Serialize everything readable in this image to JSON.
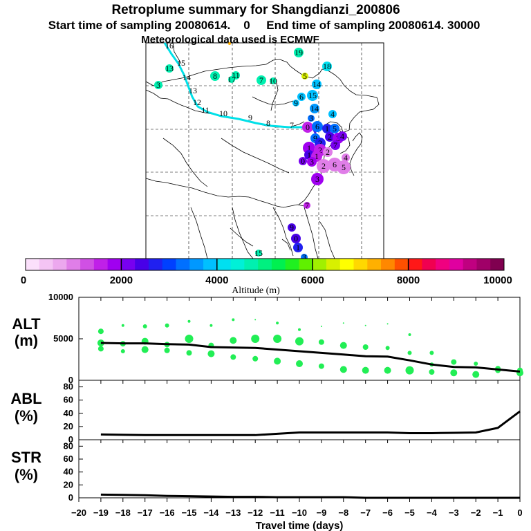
{
  "header": {
    "title": "Retroplume summary for Shangdianzi_200806",
    "subtitle": "Start time of sampling 20080614.    0     End time of sampling 20080614. 30000",
    "met_line": "Meteorological data used is ECMWF"
  },
  "colorbar": {
    "ticks": [
      "0",
      "2000",
      "4000",
      "6000",
      "8000",
      "10000"
    ],
    "label": "Altitude (m)",
    "colors": [
      "#fbe0fb",
      "#f4c4f4",
      "#eca8ee",
      "#e07ee8",
      "#d050e4",
      "#c020e8",
      "#a000f0",
      "#7800f0",
      "#4800e8",
      "#2020f0",
      "#0040ff",
      "#0070ff",
      "#0098ff",
      "#00c0ff",
      "#00e0f0",
      "#00f0d8",
      "#00f0b0",
      "#00f080",
      "#00f050",
      "#20f020",
      "#60f000",
      "#a0f000",
      "#d8f000",
      "#ffff00",
      "#ffd800",
      "#ffb000",
      "#ff8800",
      "#ff5000",
      "#ff1818",
      "#f00050",
      "#f00080",
      "#e000a0",
      "#c00080",
      "#a00068",
      "#800050"
    ]
  },
  "map": {
    "lat_labels_visible": false,
    "plume_labels": [
      {
        "t": "16",
        "x": 245,
        "y": 70,
        "c": "#000000",
        "s": 13
      },
      {
        "t": "15",
        "x": 262,
        "y": 95,
        "c": "#000000",
        "s": 15
      },
      {
        "t": "14",
        "x": 270,
        "y": 116,
        "c": "#000000",
        "s": 15
      },
      {
        "t": "13",
        "x": 279,
        "y": 135,
        "c": "#000000",
        "s": 15
      },
      {
        "t": "12",
        "x": 285,
        "y": 152,
        "c": "#000000",
        "s": 15
      },
      {
        "t": "11",
        "x": 297,
        "y": 163,
        "c": "#000000",
        "s": 14
      },
      {
        "t": "10",
        "x": 323,
        "y": 168,
        "c": "#000000",
        "s": 15
      },
      {
        "t": "9",
        "x": 362,
        "y": 174,
        "c": "#000000",
        "s": 15
      },
      {
        "t": "8",
        "x": 388,
        "y": 182,
        "c": "#000000",
        "s": 15
      },
      {
        "t": "7",
        "x": 422,
        "y": 185,
        "c": "#000000",
        "s": 15
      }
    ],
    "dots": [
      {
        "t": "13",
        "x": 245,
        "y": 99,
        "r": 6,
        "c": "#00f0b0"
      },
      {
        "t": "3",
        "x": 229,
        "y": 123,
        "r": 6,
        "c": "#00f0b0"
      },
      {
        "t": "8",
        "x": 311,
        "y": 110,
        "r": 7,
        "c": "#00f0b0"
      },
      {
        "t": "11",
        "x": 341,
        "y": 109,
        "r": 6,
        "c": "#00f0b0"
      },
      {
        "t": "17",
        "x": 335,
        "y": 115,
        "r": 5,
        "c": "#00f0b0"
      },
      {
        "t": "7",
        "x": 378,
        "y": 116,
        "r": 7,
        "c": "#00f0b0"
      },
      {
        "t": "10",
        "x": 395,
        "y": 117,
        "r": 5,
        "c": "#00f0b0"
      },
      {
        "t": "19",
        "x": 432,
        "y": 76,
        "r": 7,
        "c": "#00f0b0"
      },
      {
        "t": "18",
        "x": 473,
        "y": 96,
        "r": 7,
        "c": "#00e0f0"
      },
      {
        "t": "5",
        "x": 441,
        "y": 110,
        "r": 5,
        "c": "#d8f000"
      },
      {
        "t": "14",
        "x": 458,
        "y": 122,
        "r": 7,
        "c": "#00c0ff"
      },
      {
        "t": "6",
        "x": 436,
        "y": 140,
        "r": 6,
        "c": "#00c0ff"
      },
      {
        "t": "15",
        "x": 452,
        "y": 138,
        "r": 8,
        "c": "#00c0ff"
      },
      {
        "t": "9",
        "x": 428,
        "y": 149,
        "r": 5,
        "c": "#00c0ff"
      },
      {
        "t": "14",
        "x": 455,
        "y": 157,
        "r": 7,
        "c": "#0098ff"
      },
      {
        "t": "4",
        "x": 481,
        "y": 165,
        "r": 6,
        "c": "#00c0ff"
      },
      {
        "t": "3",
        "x": 450,
        "y": 171,
        "r": 5,
        "c": "#0070ff"
      },
      {
        "t": "0",
        "x": 445,
        "y": 184,
        "r": 8,
        "c": "#c020e8"
      },
      {
        "t": "6",
        "x": 459,
        "y": 183,
        "r": 8,
        "c": "#0070ff"
      },
      {
        "t": "1",
        "x": 473,
        "y": 186,
        "r": 7,
        "c": "#2020f0"
      },
      {
        "t": "5",
        "x": 484,
        "y": 186,
        "r": 7,
        "c": "#0070ff"
      },
      {
        "t": "9",
        "x": 456,
        "y": 200,
        "r": 7,
        "c": "#0070ff"
      },
      {
        "t": "2",
        "x": 477,
        "y": 198,
        "r": 7,
        "c": "#4800e8"
      },
      {
        "t": "3",
        "x": 489,
        "y": 200,
        "r": 8,
        "c": "#a000f0"
      },
      {
        "t": "4",
        "x": 495,
        "y": 197,
        "r": 7,
        "c": "#7800f0"
      },
      {
        "t": "2",
        "x": 463,
        "y": 207,
        "r": 8,
        "c": "#2020f0"
      },
      {
        "t": "7",
        "x": 485,
        "y": 210,
        "r": 7,
        "c": "#7800f0"
      },
      {
        "t": "1",
        "x": 447,
        "y": 214,
        "r": 9,
        "c": "#a000f0"
      },
      {
        "t": "2",
        "x": 463,
        "y": 217,
        "r": 9,
        "c": "#c020e8"
      },
      {
        "t": "2",
        "x": 474,
        "y": 220,
        "r": 7,
        "c": "#e07ee8"
      },
      {
        "t": "1",
        "x": 447,
        "y": 224,
        "r": 7,
        "c": "#4800e8"
      },
      {
        "t": "1",
        "x": 458,
        "y": 226,
        "r": 8,
        "c": "#c020e8"
      },
      {
        "t": "4",
        "x": 500,
        "y": 228,
        "r": 6,
        "c": "#e07ee8"
      },
      {
        "t": "0",
        "x": 438,
        "y": 233,
        "r": 6,
        "c": "#7800f0"
      },
      {
        "t": "3",
        "x": 451,
        "y": 234,
        "r": 7,
        "c": "#a000f0"
      },
      {
        "t": "2",
        "x": 468,
        "y": 240,
        "r": 10,
        "c": "#e07ee8"
      },
      {
        "t": "6",
        "x": 484,
        "y": 238,
        "r": 10,
        "c": "#e07ee8"
      },
      {
        "t": "5",
        "x": 497,
        "y": 242,
        "r": 10,
        "c": "#e07ee8"
      },
      {
        "t": "3",
        "x": 459,
        "y": 259,
        "r": 9,
        "c": "#a000f0"
      },
      {
        "t": "7",
        "x": 444,
        "y": 297,
        "r": 5,
        "c": "#c020e8"
      },
      {
        "t": "9",
        "x": 422,
        "y": 329,
        "r": 6,
        "c": "#4800e8"
      },
      {
        "t": "0",
        "x": 428,
        "y": 345,
        "r": 7,
        "c": "#4800e8"
      },
      {
        "t": "1",
        "x": 431,
        "y": 358,
        "r": 7,
        "c": "#2020f0"
      },
      {
        "t": "15",
        "x": 374,
        "y": 366,
        "r": 5,
        "c": "#00f0b0"
      },
      {
        "t": "3",
        "x": 440,
        "y": 372,
        "r": 5,
        "c": "#0070ff"
      }
    ]
  },
  "panels": {
    "alt": {
      "label_top": "ALT",
      "label_bottom": "(m)",
      "yticks": [
        "10000",
        "5000",
        "0"
      ]
    },
    "abl": {
      "label_top": "ABL",
      "label_bottom": "(%)",
      "yticks": [
        "80",
        "60",
        "40",
        "20",
        "0"
      ]
    },
    "str": {
      "label_top": "STR",
      "label_bottom": "(%)",
      "yticks": [
        "80",
        "60",
        "40",
        "20",
        "0"
      ]
    },
    "xlabel": "Travel time (days)",
    "xticks": [
      "−20",
      "−19",
      "−18",
      "−17",
      "−16",
      "−15",
      "−14",
      "−13",
      "−12",
      "−11",
      "−10",
      "−9",
      "−8",
      "−7",
      "−6",
      "−5",
      "−4",
      "−3",
      "−2",
      "−1",
      "0"
    ]
  },
  "chart_data": [
    {
      "type": "line",
      "title": "ALT",
      "xlabel": "Travel time (days)",
      "ylabel": "ALT (m)",
      "xlim": [
        -20,
        0
      ],
      "ylim": [
        0,
        10000
      ],
      "series": [
        {
          "name": "mean altitude",
          "x": [
            -19,
            -18,
            -17,
            -16,
            -15,
            -14,
            -13,
            -12,
            -11,
            -10,
            -9,
            -8,
            -7,
            -6,
            -5,
            -4,
            -3,
            -2,
            -1,
            0
          ],
          "values": [
            4500,
            4450,
            4450,
            4350,
            4300,
            4000,
            3950,
            3900,
            3700,
            3500,
            3300,
            3100,
            2900,
            2850,
            2400,
            1900,
            1600,
            1550,
            1300,
            1050
          ]
        },
        {
          "name": "plume spread",
          "points": [
            [
              -19,
              5900,
              4
            ],
            [
              -19,
              4500,
              5
            ],
            [
              -19,
              3800,
              4
            ],
            [
              -18,
              6600,
              2
            ],
            [
              -18,
              4400,
              4
            ],
            [
              -18,
              3500,
              3
            ],
            [
              -17,
              6500,
              3
            ],
            [
              -17,
              4700,
              5
            ],
            [
              -17,
              3700,
              5
            ],
            [
              -16,
              6600,
              3
            ],
            [
              -16,
              4300,
              4
            ],
            [
              -16,
              3600,
              4
            ],
            [
              -15,
              7100,
              2
            ],
            [
              -15,
              5000,
              6
            ],
            [
              -15,
              3300,
              4
            ],
            [
              -14,
              6600,
              2
            ],
            [
              -14,
              4200,
              4
            ],
            [
              -14,
              3200,
              5
            ],
            [
              -13,
              7300,
              2
            ],
            [
              -13,
              4800,
              5
            ],
            [
              -13,
              2800,
              4
            ],
            [
              -12,
              7300,
              1
            ],
            [
              -12,
              5000,
              6
            ],
            [
              -12,
              2600,
              4
            ],
            [
              -11,
              6900,
              2
            ],
            [
              -11,
              5000,
              6
            ],
            [
              -11,
              2300,
              5
            ],
            [
              -10,
              6100,
              2
            ],
            [
              -10,
              4700,
              6
            ],
            [
              -10,
              2000,
              5
            ],
            [
              -9,
              6500,
              1
            ],
            [
              -9,
              4600,
              4
            ],
            [
              -9,
              1700,
              4
            ],
            [
              -8,
              6900,
              1
            ],
            [
              -8,
              4200,
              5
            ],
            [
              -8,
              1300,
              5
            ],
            [
              -7,
              6600,
              1
            ],
            [
              -7,
              4000,
              4
            ],
            [
              -7,
              1200,
              5
            ],
            [
              -6,
              6800,
              1
            ],
            [
              -6,
              3900,
              3
            ],
            [
              -6,
              1200,
              5
            ],
            [
              -5,
              5500,
              2
            ],
            [
              -5,
              3300,
              3
            ],
            [
              -5,
              1200,
              6
            ],
            [
              -4,
              3300,
              3
            ],
            [
              -4,
              1900,
              3
            ],
            [
              -4,
              1000,
              4
            ],
            [
              -3,
              2200,
              4
            ],
            [
              -3,
              900,
              5
            ],
            [
              -2,
              2000,
              3
            ],
            [
              -2,
              700,
              5
            ],
            [
              -1,
              1400,
              4
            ],
            [
              -1,
              1200,
              4
            ],
            [
              0,
              1200,
              4
            ],
            [
              0,
              900,
              5
            ]
          ]
        }
      ]
    },
    {
      "type": "line",
      "title": "ABL",
      "ylabel": "ABL (%)",
      "xlim": [
        -20,
        0
      ],
      "ylim": [
        0,
        90
      ],
      "x": [
        -19,
        -18,
        -17,
        -16,
        -15,
        -14,
        -13,
        -12,
        -11,
        -10,
        -9,
        -8,
        -7,
        -6,
        -5,
        -4,
        -3,
        -2,
        -1,
        0
      ],
      "values": [
        8,
        7.5,
        7,
        7,
        7,
        7,
        7,
        7,
        9,
        11,
        11,
        11,
        11,
        11,
        10,
        10,
        10.5,
        11,
        18,
        43
      ]
    },
    {
      "type": "line",
      "title": "STR",
      "ylabel": "STR (%)",
      "xlim": [
        -20,
        0
      ],
      "ylim": [
        0,
        90
      ],
      "x": [
        -19,
        -18,
        -17,
        -16,
        -15,
        -14,
        -13,
        -12,
        -11,
        -10,
        -9,
        -8,
        -7,
        -6,
        -5,
        -4,
        -3,
        -2,
        -1,
        0
      ],
      "values": [
        5,
        4.5,
        4,
        3,
        2.5,
        2,
        1.5,
        1.5,
        1,
        1,
        1,
        1,
        0,
        0,
        0,
        0,
        0,
        0,
        0,
        0
      ]
    }
  ]
}
